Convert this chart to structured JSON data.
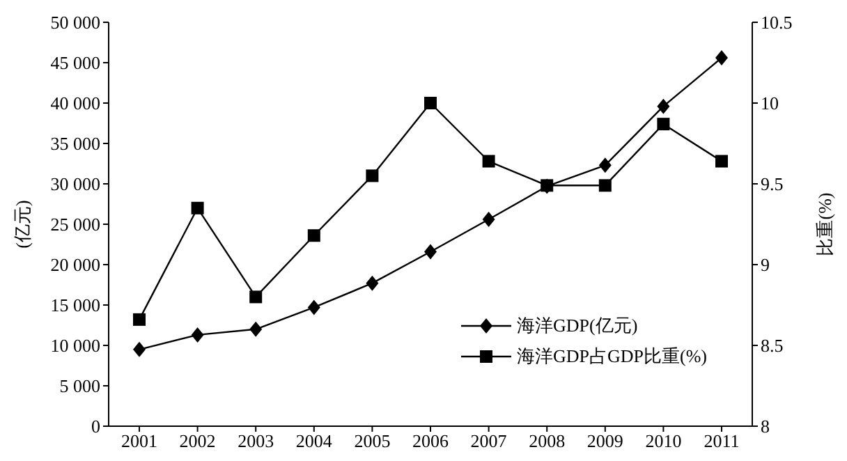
{
  "chart_data": {
    "type": "line",
    "categories": [
      "2001",
      "2002",
      "2003",
      "2004",
      "2005",
      "2006",
      "2007",
      "2008",
      "2009",
      "2010",
      "2011"
    ],
    "ylabel": "(亿元)",
    "y2label": "比重(%)",
    "series": [
      {
        "name": "海洋GDP(亿元)",
        "color": "#000000",
        "marker": "diamond",
        "values": [
          9500,
          11300,
          12000,
          14700,
          17700,
          21600,
          25600,
          29700,
          32300,
          39600,
          45600
        ]
      },
      {
        "name": "海洋GDP占GDP比重(%)",
        "color": "#000000",
        "marker": "square",
        "axis": "y2",
        "values": [
          8.66,
          9.35,
          8.8,
          9.18,
          9.55,
          10.0,
          9.64,
          9.49,
          9.49,
          9.87,
          9.64
        ]
      }
    ],
    "ylim": [
      0,
      50000
    ],
    "yticks": [
      0,
      {
        "value": 5000,
        "label": "5 000"
      },
      {
        "value": 10000,
        "label": "10 000"
      },
      {
        "value": 15000,
        "label": "15 000"
      },
      {
        "value": 20000,
        "label": "20 000"
      },
      {
        "value": 25000,
        "label": "25 000"
      },
      {
        "value": 30000,
        "label": "30 000"
      },
      {
        "value": 35000,
        "label": "35 000"
      },
      {
        "value": 40000,
        "label": "40 000"
      },
      {
        "value": 45000,
        "label": "45 000"
      },
      {
        "value": 50000,
        "label": "50 000"
      }
    ],
    "y2lim": [
      8,
      10.5
    ],
    "y2ticks": [
      8,
      8.5,
      9,
      9.5,
      10,
      10.5
    ],
    "grid": false,
    "legend": "bottom right",
    "line_style": "solid"
  }
}
